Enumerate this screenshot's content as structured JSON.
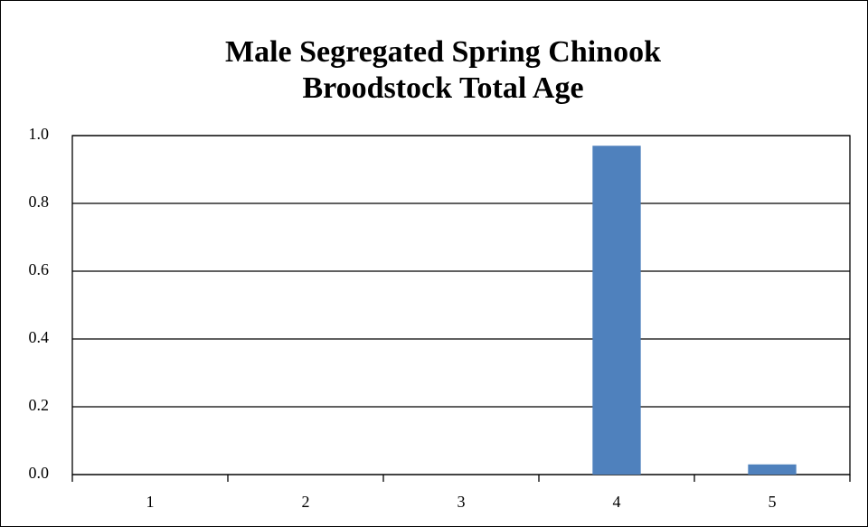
{
  "chart_data": {
    "type": "bar",
    "title": [
      "Male Segregated Spring Chinook",
      "Broodstock Total Age"
    ],
    "categories": [
      "1",
      "2",
      "3",
      "4",
      "5"
    ],
    "values": [
      0,
      0,
      0,
      0.97,
      0.03
    ],
    "color": "#4f81bd",
    "ylim": [
      0,
      1
    ],
    "yticks": [
      {
        "value": 0,
        "label": "0.0"
      },
      0.2,
      0.4,
      0.6,
      0.8,
      {
        "value": 1,
        "label": "1.0"
      }
    ],
    "grid": true
  }
}
